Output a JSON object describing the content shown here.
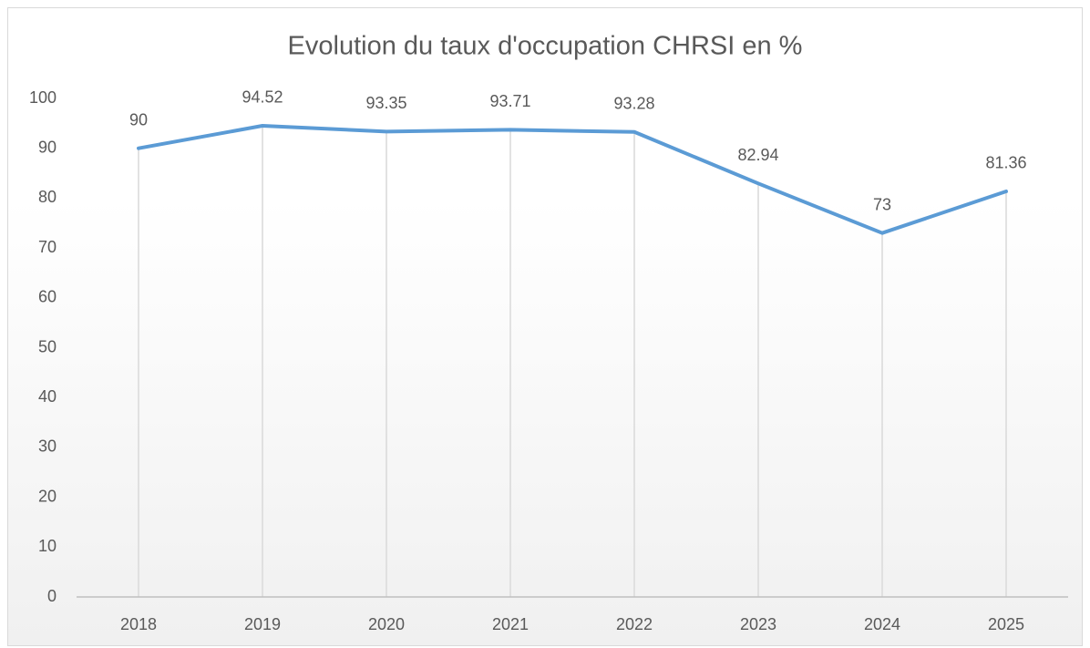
{
  "chart_data": {
    "type": "line",
    "title": "Evolution du taux d'occupation CHRSI en %",
    "categories": [
      "2018",
      "2019",
      "2020",
      "2021",
      "2022",
      "2023",
      "2024",
      "2025"
    ],
    "values": [
      90,
      94.52,
      93.35,
      93.71,
      93.28,
      82.94,
      73,
      81.36
    ],
    "color": "#5b9bd5",
    "ylim": [
      0,
      100
    ],
    "yticks": [
      0,
      10,
      20,
      30,
      40,
      50,
      60,
      70,
      80,
      90,
      100
    ],
    "drop_lines": true
  }
}
